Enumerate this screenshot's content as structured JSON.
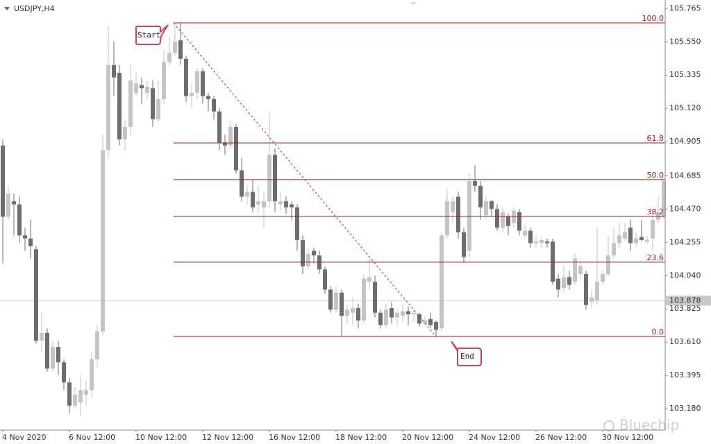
{
  "chart_data": {
    "type": "candlestick",
    "title": "USDJPY,H4",
    "categories": [
      "4 Nov 2020",
      null,
      null,
      null,
      null,
      null,
      null,
      null,
      null,
      null,
      null,
      null,
      "6 Nov 12:00",
      null,
      null,
      null,
      null,
      null,
      null,
      null,
      null,
      null,
      null,
      null,
      "10 Nov 12:00",
      null,
      null,
      null,
      null,
      null,
      null,
      null,
      null,
      null,
      null,
      null,
      "12 Nov 12:00",
      null,
      null,
      null,
      null,
      null,
      null,
      null,
      null,
      null,
      null,
      null,
      "16 Nov 12:00",
      null,
      null,
      null,
      null,
      null,
      null,
      null,
      null,
      null,
      null,
      null,
      "18 Nov 12:00",
      null,
      null,
      null,
      null,
      null,
      null,
      null,
      null,
      null,
      null,
      null,
      "20 Nov 12:00",
      null,
      null,
      null,
      null,
      null,
      null,
      null,
      null,
      null,
      null,
      null,
      "24 Nov 12:00",
      null,
      null,
      null,
      null,
      null,
      null,
      null,
      null,
      null,
      null,
      null,
      "26 Nov 12:00",
      null,
      null,
      null,
      null,
      null,
      null,
      null,
      null,
      null,
      null,
      null,
      "30 Nov 12:00",
      null,
      null,
      null,
      null,
      null,
      null,
      null,
      null,
      null,
      null,
      null
    ],
    "open": [
      104.88,
      104.42,
      104.52,
      104.5,
      104.3,
      104.28,
      104.21,
      103.62,
      103.67,
      103.44,
      103.58,
      103.48,
      103.35,
      103.2,
      103.22,
      103.27,
      103.3,
      103.5,
      103.68,
      104.85,
      105.4,
      105.35,
      104.92,
      105.0,
      105.22,
      105.27,
      105.22,
      105.25,
      105.05,
      105.18,
      105.42,
      105.48,
      105.56,
      105.44,
      105.2,
      105.22,
      105.36,
      105.2,
      105.18,
      105.1,
      104.9,
      104.88,
      105.0,
      104.72,
      104.55,
      104.58,
      104.5,
      104.48,
      104.52,
      104.82,
      104.5,
      104.52,
      104.5,
      104.48,
      104.27,
      104.1,
      104.2,
      104.17,
      104.08,
      103.95,
      103.82,
      103.93,
      103.78,
      103.8,
      103.83,
      103.75,
      104.0,
      104.0,
      103.8,
      103.72,
      103.83,
      103.77,
      103.78,
      103.81,
      103.79,
      103.79,
      103.73,
      103.76,
      103.74,
      103.7,
      104.3,
      104.45,
      104.55,
      104.32,
      104.2,
      104.65,
      104.62,
      104.43,
      104.52,
      104.47,
      104.35,
      104.42,
      104.38,
      104.45,
      104.3,
      104.33,
      104.25,
      104.25,
      104.26,
      104.26,
      104.02,
      103.96,
      104.03,
      104.0,
      104.05,
      104.05,
      103.87,
      103.88,
      104.0,
      104.05,
      104.17,
      104.25,
      104.28,
      104.35,
      104.25,
      104.29,
      104.26,
      104.28,
      104.4,
      104.42
    ],
    "high": [
      104.92,
      104.62,
      104.57,
      104.55,
      104.35,
      104.4,
      104.23,
      103.8,
      103.7,
      103.62,
      103.62,
      103.5,
      103.38,
      103.32,
      103.4,
      103.36,
      103.55,
      103.72,
      104.95,
      105.65,
      105.55,
      105.4,
      105.05,
      105.4,
      105.35,
      105.32,
      105.3,
      105.3,
      105.3,
      105.5,
      105.58,
      105.65,
      105.67,
      105.46,
      105.28,
      105.38,
      105.38,
      105.22,
      105.2,
      105.12,
      104.95,
      105.04,
      105.02,
      104.8,
      104.62,
      104.66,
      104.62,
      104.58,
      105.1,
      104.86,
      104.58,
      104.55,
      104.52,
      104.5,
      104.3,
      104.22,
      104.22,
      104.2,
      104.1,
      103.97,
      103.97,
      103.95,
      103.85,
      103.9,
      103.86,
      104.05,
      104.15,
      104.04,
      103.82,
      103.86,
      103.87,
      103.82,
      103.86,
      103.84,
      103.82,
      103.8,
      103.78,
      103.8,
      103.75,
      104.32,
      104.6,
      104.55,
      104.58,
      104.35,
      104.7,
      104.75,
      104.65,
      104.55,
      104.53,
      104.5,
      104.48,
      104.44,
      104.48,
      104.47,
      104.37,
      104.35,
      104.3,
      104.29,
      104.28,
      104.28,
      104.05,
      104.1,
      104.07,
      104.18,
      104.14,
      104.07,
      103.95,
      104.35,
      104.08,
      104.3,
      104.35,
      104.38,
      104.38,
      104.4,
      104.32,
      104.4,
      104.3,
      104.45,
      104.55,
      104.68
    ],
    "low": [
      104.12,
      104.4,
      104.3,
      104.25,
      104.2,
      104.15,
      103.6,
      103.55,
      103.42,
      103.42,
      103.4,
      103.3,
      103.15,
      103.18,
      103.13,
      103.2,
      103.25,
      103.45,
      103.65,
      104.8,
      105.2,
      104.88,
      104.85,
      104.95,
      105.2,
      105.15,
      105.18,
      105.0,
      105.03,
      105.15,
      105.4,
      105.46,
      105.4,
      105.16,
      105.12,
      105.18,
      105.15,
      105.1,
      105.05,
      104.85,
      104.82,
      104.86,
      104.7,
      104.52,
      104.5,
      104.45,
      104.45,
      104.35,
      104.48,
      104.45,
      104.46,
      104.44,
      104.4,
      104.2,
      104.05,
      104.08,
      104.12,
      104.05,
      103.92,
      103.8,
      103.8,
      103.65,
      103.73,
      103.72,
      103.7,
      103.73,
      103.95,
      103.77,
      103.7,
      103.7,
      103.73,
      103.72,
      103.74,
      103.72,
      103.74,
      103.71,
      103.72,
      103.7,
      103.65,
      103.68,
      104.28,
      104.38,
      104.28,
      104.12,
      104.15,
      104.58,
      104.4,
      104.4,
      104.42,
      104.33,
      104.32,
      104.3,
      104.35,
      104.3,
      104.28,
      104.22,
      104.22,
      104.22,
      104.22,
      103.98,
      103.9,
      103.93,
      103.95,
      103.98,
      104.02,
      103.82,
      103.83,
      103.85,
      103.98,
      104.03,
      104.15,
      104.22,
      104.26,
      104.2,
      104.22,
      104.26,
      104.24,
      104.2,
      104.38,
      104.4
    ],
    "close": [
      104.42,
      104.57,
      104.5,
      104.3,
      104.28,
      104.23,
      103.62,
      103.67,
      103.44,
      103.58,
      103.48,
      103.35,
      103.2,
      103.27,
      103.3,
      103.3,
      103.5,
      103.68,
      104.85,
      105.4,
      105.32,
      104.92,
      105.0,
      105.3,
      105.28,
      105.25,
      105.26,
      105.05,
      105.18,
      105.42,
      105.48,
      105.55,
      105.44,
      105.2,
      105.22,
      105.36,
      105.2,
      105.18,
      105.1,
      104.9,
      104.88,
      105.0,
      104.72,
      104.55,
      104.58,
      104.48,
      104.52,
      104.52,
      104.82,
      104.52,
      104.52,
      104.48,
      104.48,
      104.27,
      104.1,
      104.18,
      104.17,
      104.08,
      103.95,
      103.82,
      103.93,
      103.78,
      103.82,
      103.83,
      103.75,
      104.02,
      104.03,
      103.8,
      103.72,
      103.82,
      103.77,
      103.8,
      103.81,
      103.79,
      103.8,
      103.73,
      103.75,
      103.72,
      103.69,
      104.3,
      104.52,
      104.52,
      104.32,
      104.16,
      104.65,
      104.62,
      104.48,
      104.52,
      104.47,
      104.35,
      104.45,
      104.36,
      104.46,
      104.33,
      104.33,
      104.25,
      104.26,
      104.27,
      104.25,
      104.0,
      103.95,
      104.03,
      103.98,
      104.15,
      104.1,
      103.85,
      103.9,
      104.0,
      104.05,
      104.17,
      104.25,
      104.3,
      104.32,
      104.25,
      104.28,
      104.27,
      104.27,
      104.4,
      104.45,
      104.65
    ],
    "up_color": "#c4c4c4",
    "down_color": "#6e6e6e",
    "ylim": [
      103.042,
      105.82
    ],
    "yticks": [
      105.765,
      {
        "value": 105.55,
        "label": "105.550"
      },
      105.335,
      {
        "value": 105.12,
        "label": "105.120"
      },
      104.905,
      104.685,
      {
        "value": 104.47,
        "label": "104.470"
      },
      104.255,
      {
        "value": 104.04,
        "label": "104.040"
      },
      103.825,
      {
        "value": 103.61,
        "label": "103.610"
      },
      103.395,
      {
        "value": 103.18,
        "label": "103.180"
      }
    ],
    "last_price": 103.878,
    "fib_levels": [
      {
        "label": "100.0",
        "price": 105.672
      },
      {
        "label": "61.8",
        "price": 104.897
      },
      {
        "label": "50.0",
        "price": 104.66
      },
      {
        "label": "38.2",
        "price": 104.422
      },
      {
        "label": "23.6",
        "price": 104.127
      },
      {
        "label": "0.0",
        "price": 103.647
      }
    ],
    "fib_color": "#9b1c1c",
    "annotations": [
      "Start",
      "End"
    ],
    "watermark": "Bluechip"
  }
}
